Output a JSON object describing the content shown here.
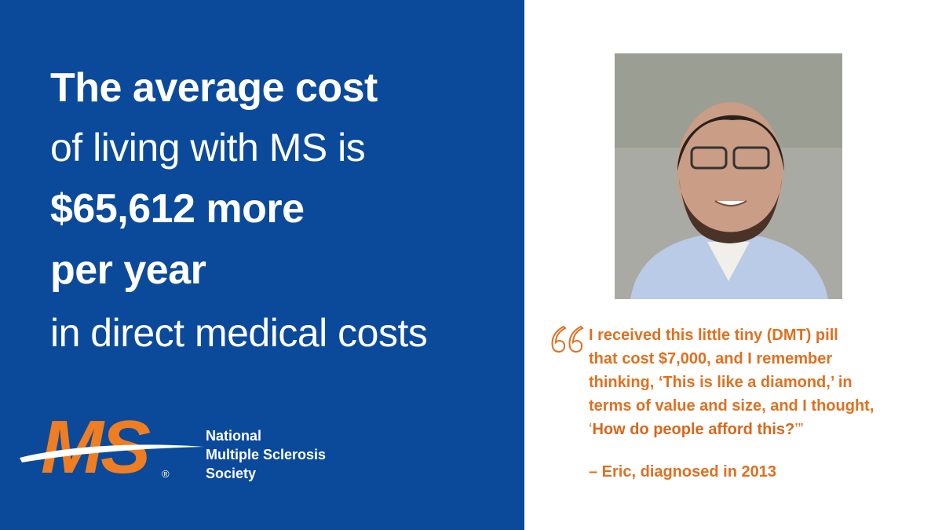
{
  "headline": {
    "lines": [
      "The average cost",
      "of living with MS is",
      "$65,612 more",
      "per year",
      "in direct medical costs"
    ]
  },
  "logo": {
    "mark": "MS",
    "registered": "®",
    "name_lines": [
      "National",
      "Multiple Sclerosis",
      "Society"
    ]
  },
  "quote": {
    "lines": [
      "I received this little tiny (DMT) pill",
      "that cost $7,000, and I remember",
      "thinking, ‘This is like a diamond,’ in",
      "terms of value and size, and I thought,"
    ],
    "last_line": [
      "‘",
      "How do people afford this?",
      "’”"
    ],
    "attribution": "– Eric, diagnosed in 2013"
  }
}
